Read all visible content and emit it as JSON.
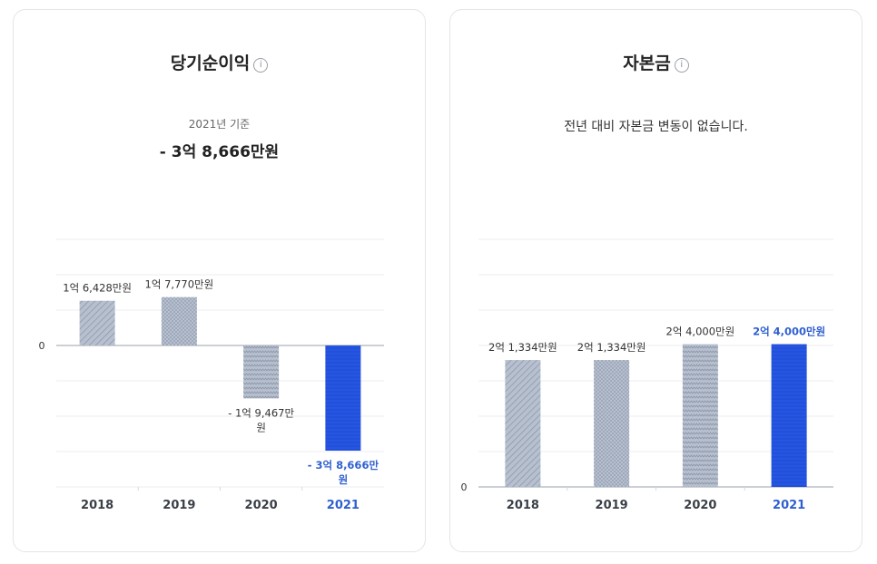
{
  "charts": [
    {
      "title": "당기순이익",
      "info_icon": "info-icon",
      "basis": "2021년 기준",
      "headline": "- 3억 8,666만원",
      "chart_data": {
        "type": "bar",
        "categories": [
          "2018",
          "2019",
          "2020",
          "2021"
        ],
        "values": [
          16428,
          17770,
          -19467,
          -38666
        ],
        "unit": "만원",
        "data_labels": [
          [
            "1억 6,428만원"
          ],
          [
            "1억 7,770만원"
          ],
          [
            "- 1억 9,467만",
            "원"
          ],
          [
            "- 3억 8,666만",
            "원"
          ]
        ],
        "y_tick_labels": [
          "0"
        ],
        "ylim": [
          -68000,
          50000
        ],
        "highlight_index": 3,
        "grid": true
      }
    },
    {
      "title": "자본금",
      "info_icon": "info-icon",
      "message": "전년 대비 자본금 변동이 없습니다.",
      "chart_data": {
        "type": "bar",
        "categories": [
          "2018",
          "2019",
          "2020",
          "2021"
        ],
        "values": [
          21334,
          21334,
          24000,
          24000
        ],
        "unit": "만원",
        "data_labels": [
          [
            "2억 1,334만원"
          ],
          [
            "2억 1,334만원"
          ],
          [
            "2억 4,000만원"
          ],
          [
            "2억 4,000만원"
          ]
        ],
        "y_tick_labels": [
          "0"
        ],
        "ylim": [
          0,
          42000
        ],
        "highlight_index": 3,
        "grid": true
      }
    }
  ],
  "colors": {
    "bar_gray": "#b7c0cf",
    "bar_gray_line": "#8d98ab",
    "highlight": "#2556e3",
    "highlight_text": "#2f5fd0",
    "grid": "#eceef1",
    "axis": "#9aa0a8"
  }
}
